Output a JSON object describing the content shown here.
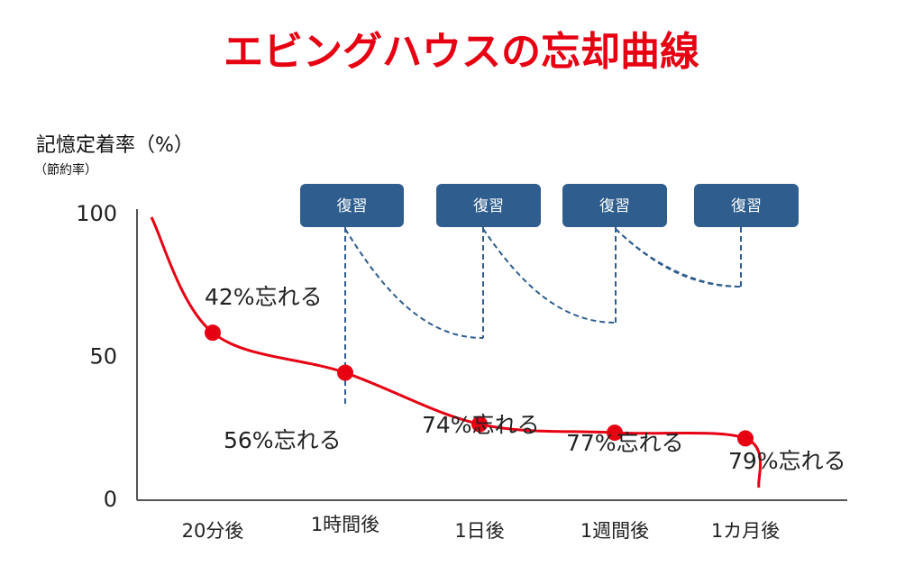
{
  "chart_data": {
    "type": "line",
    "title": "エビングハウスの忘却曲線",
    "ylabel": "記憶定着率（%）",
    "ylabel_sub": "（節約率）",
    "xlabel": "",
    "ylim": [
      0,
      100
    ],
    "y_ticks": [
      "0",
      "50",
      "100"
    ],
    "categories": [
      "20分後",
      "1時間後",
      "1日後",
      "1週間後",
      "1カ月後"
    ],
    "values": [
      58,
      44,
      26,
      23,
      21
    ],
    "point_labels": [
      "42%忘れる",
      "56%忘れる",
      "74%忘れる",
      "77%忘れる",
      "79%忘れる"
    ],
    "review_label": "復習",
    "review_count": 4,
    "grid": false,
    "legend": "none"
  },
  "colors": {
    "title": "#e60012",
    "curve": "#e60012",
    "review_box": "#2e5d8e",
    "review_line": "#2e5d8e",
    "axis": "#555555"
  }
}
